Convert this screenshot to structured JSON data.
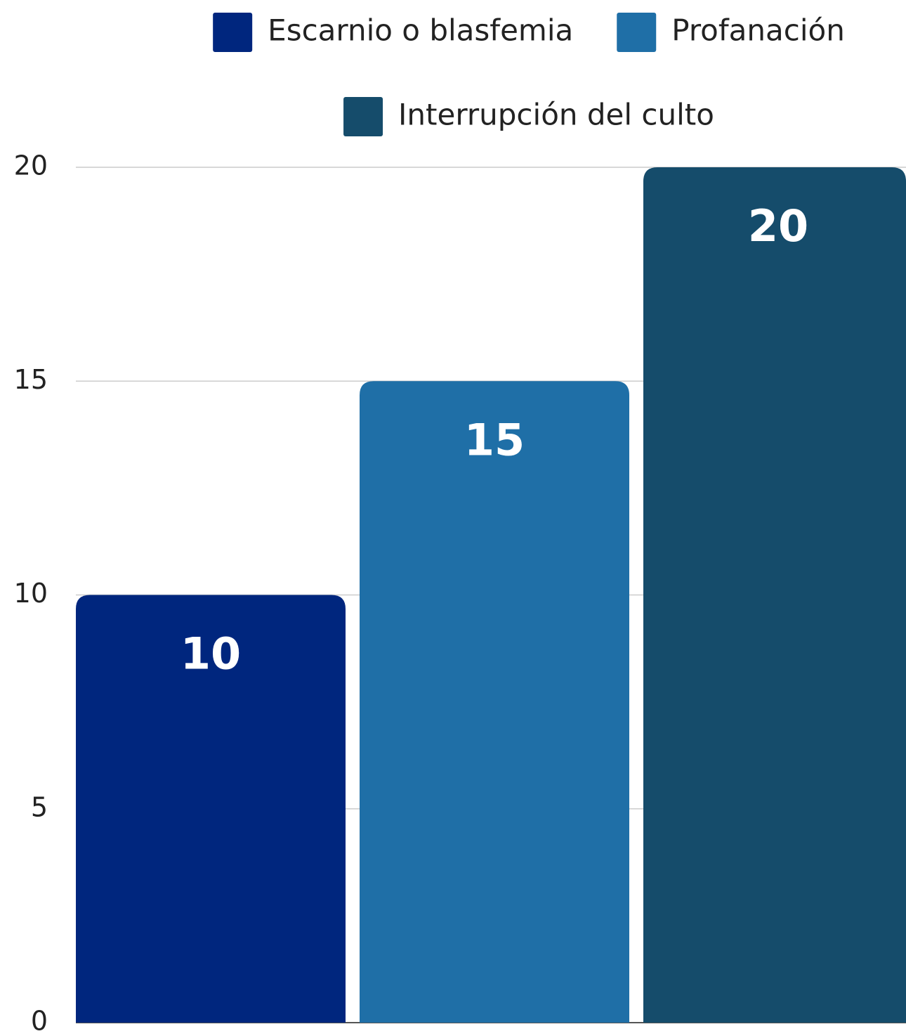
{
  "chart_data": {
    "type": "bar",
    "series": [
      {
        "name": "Escarnio o blasfemia",
        "color": "#00267e",
        "values": [
          10
        ]
      },
      {
        "name": "Profanación",
        "color": "#1f6fa7",
        "values": [
          15
        ]
      },
      {
        "name": "Interrupción del culto",
        "color": "#154c6b",
        "values": [
          20
        ]
      }
    ],
    "ylim": [
      0,
      20
    ],
    "yticks": [
      0,
      5,
      10,
      15,
      20
    ],
    "grid": true,
    "legend": "top"
  }
}
